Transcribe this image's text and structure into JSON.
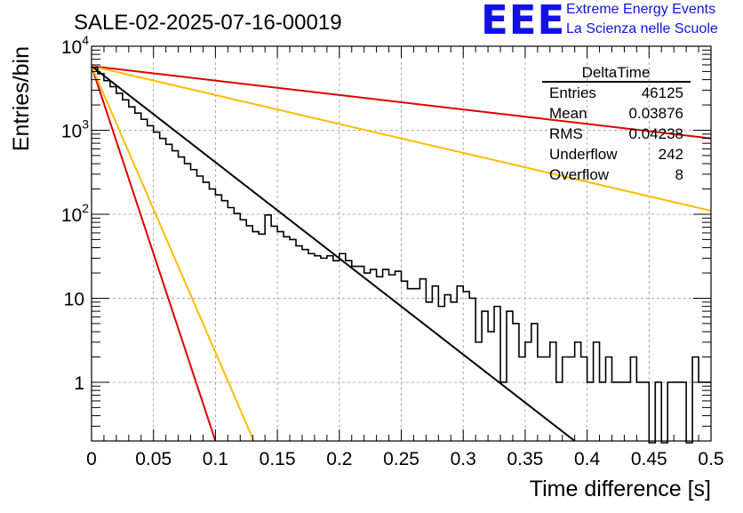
{
  "logo": {
    "letters": "EEE",
    "line1": "Extreme Energy Events",
    "line2": "La Scienza nelle Scuole",
    "color": "#1111e6"
  },
  "stats": {
    "title": "DeltaTime",
    "rows": [
      {
        "label": "Entries",
        "value": "46125"
      },
      {
        "label": "Mean",
        "value": "0.03876"
      },
      {
        "label": "RMS",
        "value": "0.04238"
      },
      {
        "label": "Underflow",
        "value": "242"
      },
      {
        "label": "Overflow",
        "value": "8"
      }
    ]
  },
  "chart_data": {
    "type": "line",
    "title": "SALE-02-2025-07-16-00019",
    "xlabel": "Time difference [s]",
    "ylabel": "Entries/bin",
    "xlim": [
      0,
      0.5
    ],
    "ylim": [
      0.2,
      10000
    ],
    "y_scale": "log",
    "grid": true,
    "x_ticks": [
      "0",
      "0.05",
      "0.1",
      "0.15",
      "0.2",
      "0.25",
      "0.3",
      "0.35",
      "0.4",
      "0.45",
      "0.5"
    ],
    "y_ticks": [
      {
        "value": 1,
        "label": "1"
      },
      {
        "value": 10,
        "label": "10"
      },
      {
        "value": 100,
        "label": "10",
        "exp": "2"
      },
      {
        "value": 1000,
        "label": "10",
        "exp": "3"
      },
      {
        "value": 10000,
        "label": "10",
        "exp": "4"
      }
    ],
    "histogram": {
      "name": "DeltaTime",
      "color": "#000000",
      "bin_width": 0.005,
      "values": [
        5600,
        4700,
        3900,
        3300,
        2750,
        2300,
        1900,
        1600,
        1350,
        1130,
        950,
        800,
        680,
        570,
        480,
        400,
        340,
        285,
        240,
        200,
        170,
        145,
        120,
        102,
        86,
        73,
        62,
        58,
        98,
        72,
        62,
        54,
        50,
        42,
        38,
        34,
        32,
        30,
        32,
        28,
        34,
        28,
        24,
        24,
        20,
        22,
        18,
        22,
        19,
        21,
        16,
        13,
        13,
        17,
        9,
        14,
        8,
        11,
        9,
        14,
        12,
        10,
        3,
        7,
        4,
        8,
        1,
        7,
        5,
        2,
        3,
        5,
        2,
        2,
        3,
        1,
        2,
        2,
        3,
        2,
        1,
        3,
        1,
        2,
        1,
        1,
        1,
        2,
        1,
        1,
        0,
        1,
        0,
        1,
        1,
        1,
        0,
        2,
        1,
        1
      ]
    },
    "fits": [
      {
        "color": "#000000",
        "y0": 5800,
        "y_end": 0.2,
        "x_end": 0.39
      },
      {
        "color": "#dd0000",
        "y0": 5800,
        "y_end": 800,
        "x_end": 0.5
      },
      {
        "color": "#ffbb00",
        "y0": 5800,
        "y_end": 110,
        "x_end": 0.5
      },
      {
        "color": "#dd0000",
        "y0": 5800,
        "y_end": 0.2,
        "x_end": 0.1
      },
      {
        "color": "#ffbb00",
        "y0": 5800,
        "y_end": 0.2,
        "x_end": 0.131
      }
    ]
  }
}
